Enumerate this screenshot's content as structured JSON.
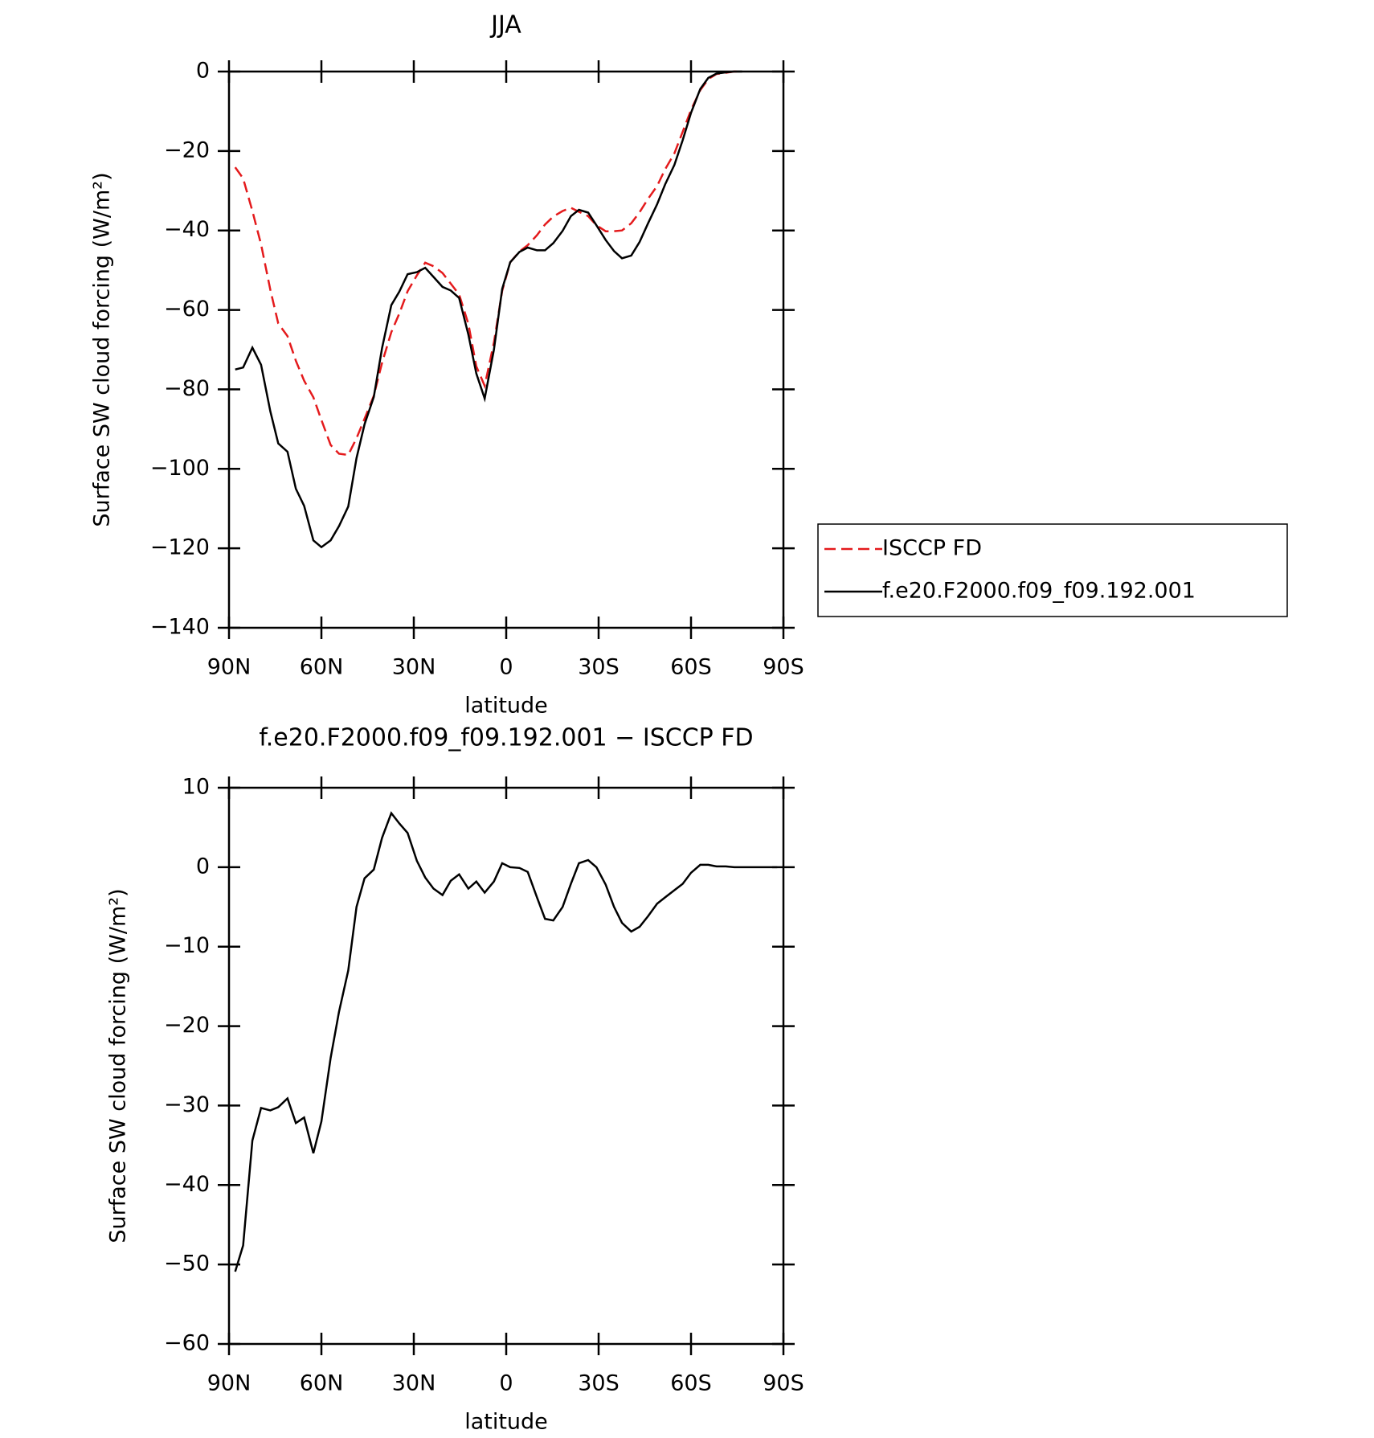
{
  "chart_data": [
    {
      "type": "line",
      "title": "JJA",
      "xlabel": "latitude",
      "ylabel": "Surface SW cloud forcing (W/m²)",
      "x": [
        88,
        85.4,
        82.4,
        79.6,
        76.6,
        74,
        71,
        68.3,
        65.6,
        62.6,
        60,
        57,
        54.3,
        51.3,
        48.6,
        46,
        43,
        40.3,
        37.3,
        34.7,
        32,
        29,
        26.3,
        23.6,
        20.7,
        18,
        15.3,
        12.3,
        9.7,
        7,
        4,
        1.3,
        -1.3,
        -4.3,
        -7,
        -10,
        -12.6,
        -15.3,
        -18.3,
        -21,
        -23.6,
        -26.6,
        -29.3,
        -32.3,
        -35,
        -37.6,
        -40.6,
        -43.3,
        -46,
        -49,
        -51.6,
        -54.6,
        -57.3,
        -60,
        -63,
        -65.6,
        -68.3,
        -71.3,
        -74,
        -76.6
      ],
      "series": [
        {
          "name": "ISCCP FD",
          "color": "#e41a1c",
          "linestyle": "dashed",
          "values": [
            -24.1,
            -26.9,
            -35.1,
            -43.5,
            -54.9,
            -63.4,
            -66.6,
            -72.8,
            -77.8,
            -82,
            -87.7,
            -94,
            -96.2,
            -96.5,
            -92.3,
            -87.4,
            -81.6,
            -73.3,
            -65.6,
            -60.9,
            -55.3,
            -51.3,
            -48.1,
            -49,
            -50.7,
            -53.4,
            -56.1,
            -63.5,
            -74.2,
            -79.1,
            -68.2,
            -55.2,
            -48,
            -45.3,
            -43.7,
            -41.2,
            -38.5,
            -36.5,
            -35.1,
            -34.3,
            -35.3,
            -36.4,
            -38.7,
            -40.2,
            -40.2,
            -40,
            -38.2,
            -35.4,
            -32.1,
            -28.8,
            -24.6,
            -20.6,
            -15.2,
            -9.7,
            -4.7,
            -1.9,
            -0.6,
            -0.3,
            0,
            0
          ]
        },
        {
          "name": "f.e20.F2000.f09_f09.192.001",
          "color": "#000000",
          "linestyle": "solid",
          "values": [
            -75,
            -74.5,
            -69.5,
            -73.8,
            -85.5,
            -93.6,
            -95.7,
            -105,
            -109.3,
            -118,
            -119.7,
            -118,
            -114.4,
            -109.5,
            -97.3,
            -88.8,
            -81.9,
            -69.6,
            -58.8,
            -55.4,
            -51,
            -50.5,
            -49.4,
            -51.7,
            -54.2,
            -55.1,
            -57,
            -66.2,
            -76,
            -82.3,
            -70,
            -54.7,
            -48,
            -45.4,
            -44.3,
            -45,
            -45,
            -43.2,
            -40.1,
            -36.4,
            -34.8,
            -35.5,
            -38.7,
            -42.4,
            -45.2,
            -47,
            -46.3,
            -42.9,
            -38.3,
            -33.4,
            -28.4,
            -23.5,
            -17.3,
            -10.4,
            -4.4,
            -1.6,
            -0.5,
            -0.2,
            0,
            0
          ]
        }
      ],
      "xlim": [
        90,
        -90
      ],
      "xticks": [
        {
          "value": 90,
          "label": "90N"
        },
        {
          "value": 60,
          "label": "60N"
        },
        {
          "value": 30,
          "label": "30N"
        },
        0,
        {
          "value": -30,
          "label": "30S"
        },
        {
          "value": -60,
          "label": "60S"
        },
        {
          "value": -90,
          "label": "90S"
        }
      ],
      "ylim": [
        -140,
        0
      ],
      "yticks": [
        0,
        {
          "value": -20,
          "label": "−20"
        },
        {
          "value": -40,
          "label": "−40"
        },
        {
          "value": -60,
          "label": "−60"
        },
        {
          "value": -80,
          "label": "−80"
        },
        {
          "value": -100,
          "label": "−100"
        },
        {
          "value": -120,
          "label": "−120"
        },
        {
          "value": -140,
          "label": "−140"
        }
      ],
      "legend": "outside right"
    },
    {
      "type": "line",
      "title": "f.e20.F2000.f09_f09.192.001 − ISCCP FD",
      "xlabel": "latitude",
      "ylabel": "Surface SW cloud forcing (W/m²)",
      "x": [
        88,
        85.4,
        82.4,
        79.6,
        76.6,
        74,
        71,
        68.3,
        65.6,
        62.6,
        60,
        57,
        54.3,
        51.3,
        48.6,
        46,
        43,
        40.3,
        37.3,
        34.7,
        32,
        29,
        26.3,
        23.6,
        20.7,
        18,
        15.3,
        12.3,
        9.7,
        7,
        4,
        1.3,
        -1.3,
        -4.3,
        -7,
        -10,
        -12.6,
        -15.3,
        -18.3,
        -21,
        -23.6,
        -26.6,
        -29.3,
        -32.3,
        -35,
        -37.6,
        -40.6,
        -43.3,
        -46,
        -49,
        -51.6,
        -54.6,
        -57.3,
        -60,
        -63,
        -65.6,
        -68.3,
        -71.3,
        -74,
        -76.6,
        -79.6,
        -82.3,
        -85,
        -88
      ],
      "series": [
        {
          "name": "f.e20.F2000.f09_f09.192.001 − ISCCP FD",
          "color": "#000000",
          "linestyle": "solid",
          "values": [
            -50.9,
            -47.6,
            -34.4,
            -30.3,
            -30.6,
            -30.2,
            -29.1,
            -32.2,
            -31.5,
            -36,
            -32,
            -24,
            -18.2,
            -13,
            -5,
            -1.4,
            -0.3,
            3.7,
            6.8,
            5.5,
            4.3,
            0.8,
            -1.3,
            -2.7,
            -3.5,
            -1.7,
            -0.9,
            -2.7,
            -1.8,
            -3.2,
            -1.8,
            0.5,
            0,
            -0.1,
            -0.6,
            -3.8,
            -6.5,
            -6.7,
            -5,
            -2.1,
            0.5,
            0.9,
            0,
            -2.2,
            -5,
            -7,
            -8.1,
            -7.5,
            -6.2,
            -4.6,
            -3.8,
            -2.9,
            -2.1,
            -0.7,
            0.3,
            0.3,
            0.1,
            0.1,
            0,
            0,
            0,
            0,
            0,
            0
          ]
        }
      ],
      "xlim": [
        90,
        -90
      ],
      "xticks": [
        {
          "value": 90,
          "label": "90N"
        },
        {
          "value": 60,
          "label": "60N"
        },
        {
          "value": 30,
          "label": "30N"
        },
        0,
        {
          "value": -30,
          "label": "30S"
        },
        {
          "value": -60,
          "label": "60S"
        },
        {
          "value": -90,
          "label": "90S"
        }
      ],
      "ylim": [
        -60,
        10
      ],
      "yticks": [
        10,
        0,
        {
          "value": -10,
          "label": "−10"
        },
        {
          "value": -20,
          "label": "−20"
        },
        {
          "value": -30,
          "label": "−30"
        },
        {
          "value": -40,
          "label": "−40"
        },
        {
          "value": -50,
          "label": "−50"
        },
        {
          "value": -60,
          "label": "−60"
        }
      ]
    }
  ]
}
